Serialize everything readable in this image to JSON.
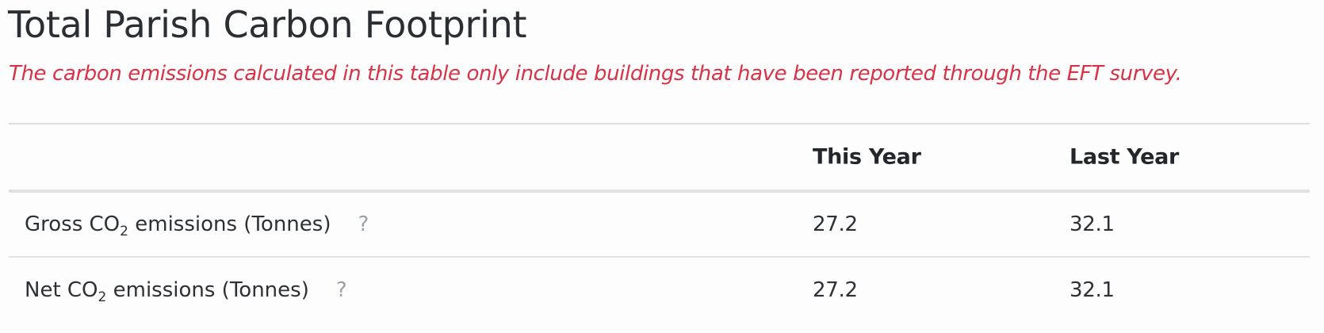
{
  "page": {
    "title": "Total Parish Carbon Footprint",
    "notice": "The carbon emissions calculated in this table only include buildings that have been reported through the EFT survey."
  },
  "table": {
    "headers": [
      "",
      "This Year",
      "Last Year"
    ],
    "rows": [
      {
        "label_prefix": "Gross CO",
        "label_sub": "2",
        "label_suffix": " emissions (Tonnes)",
        "help": "?",
        "this_year": "27.2",
        "last_year": "32.1"
      },
      {
        "label_prefix": "Net CO",
        "label_sub": "2",
        "label_suffix": " emissions (Tonnes)",
        "help": "?",
        "this_year": "27.2",
        "last_year": "32.1"
      }
    ]
  },
  "colors": {
    "notice": "#d93246",
    "text": "#2d3035",
    "help_icon": "#9aa0a6"
  },
  "icons": {
    "help": "question-mark-icon"
  }
}
